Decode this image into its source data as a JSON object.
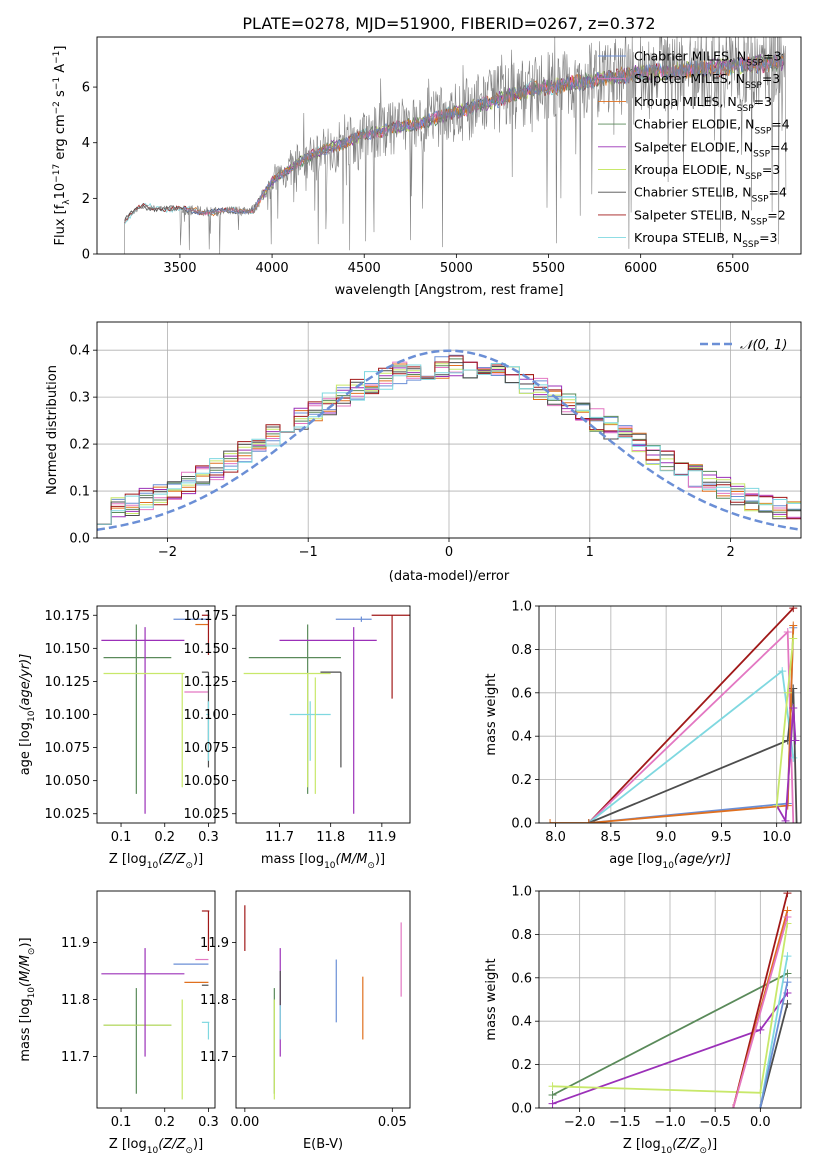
{
  "figure": {
    "title": "PLATE=0278, MJD=51900, FIBERID=0267, z=0.372"
  },
  "colors": {
    "chabrier_miles": "#6b8fd6",
    "salpeter_miles": "#e377c2",
    "kroupa_miles": "#e0701f",
    "chabrier_elodie": "#5a8a5a",
    "salpeter_elodie": "#9b30b8",
    "kroupa_elodie": "#c8e86a",
    "chabrier_stelib": "#4d4d4d",
    "salpeter_stelib": "#a01818",
    "kroupa_stelib": "#7fd8e0",
    "data": "#808080",
    "normal": "#6b8fd6",
    "grid": "#b0b0b0"
  },
  "chart_data": [
    {
      "id": "spectrum",
      "type": "line",
      "xlabel": "wavelength [Angstrom, rest frame]",
      "ylabel_main": "Flux [f",
      "ylabel_sub": "λ",
      "ylabel_rest": "10",
      "ylabel_exp": "−17",
      "ylabel_units": " erg cm",
      "ylabel_exp2": "−2",
      "ylabel_s": " s",
      "ylabel_exp3": "−1",
      "ylabel_A": " A",
      "ylabel_exp4": "−1",
      "ylabel_end": "]",
      "xlim": [
        3050,
        6870
      ],
      "ylim": [
        0,
        7.8
      ],
      "xticks": [
        3500,
        4000,
        4500,
        5000,
        5500,
        6000,
        6500
      ],
      "yticks": [
        0,
        2,
        4,
        6
      ],
      "grid": false,
      "legend_position": "top-right",
      "legend": [
        {
          "name": "Chabrier MILES, N",
          "sub": "SSP",
          "tail": "=3",
          "color": "chabrier_miles"
        },
        {
          "name": "Salpeter MILES, N",
          "sub": "SSP",
          "tail": "=3",
          "color": "salpeter_miles"
        },
        {
          "name": "Kroupa MILES, N",
          "sub": "SSP",
          "tail": "=3",
          "color": "kroupa_miles"
        },
        {
          "name": "Chabrier ELODIE, N",
          "sub": "SSP",
          "tail": "=4",
          "color": "chabrier_elodie"
        },
        {
          "name": "Salpeter ELODIE, N",
          "sub": "SSP",
          "tail": "=4",
          "color": "salpeter_elodie"
        },
        {
          "name": "Kroupa ELODIE, N",
          "sub": "SSP",
          "tail": "=3",
          "color": "kroupa_elodie"
        },
        {
          "name": "Chabrier STELIB, N",
          "sub": "SSP",
          "tail": "=4",
          "color": "chabrier_stelib"
        },
        {
          "name": "Salpeter STELIB, N",
          "sub": "SSP",
          "tail": "=2",
          "color": "salpeter_stelib"
        },
        {
          "name": "Kroupa STELIB, N",
          "sub": "SSP",
          "tail": "=3",
          "color": "kroupa_stelib"
        }
      ],
      "continuum_x": [
        3200,
        3250,
        3300,
        3400,
        3500,
        3600,
        3700,
        3800,
        3900,
        3950,
        4000,
        4100,
        4200,
        4300,
        4400,
        4500,
        4600,
        4700,
        4800,
        4900,
        5000,
        5100,
        5200,
        5300,
        5400,
        5500,
        5600,
        5700,
        5800,
        5900,
        6000,
        6200,
        6400,
        6600,
        6750
      ],
      "continuum_y": [
        1.2,
        1.5,
        1.7,
        1.65,
        1.6,
        1.55,
        1.5,
        1.55,
        1.6,
        2.1,
        2.6,
        3.1,
        3.5,
        3.8,
        4.0,
        4.3,
        4.4,
        4.6,
        4.7,
        4.9,
        5.1,
        5.3,
        5.5,
        5.7,
        5.9,
        6.0,
        6.1,
        6.2,
        6.3,
        6.4,
        6.5,
        6.6,
        6.7,
        6.8,
        6.9
      ]
    },
    {
      "id": "residuals",
      "type": "histogram",
      "xlabel": "(data-model)/error",
      "ylabel": "Normed distribution",
      "xlim": [
        -2.5,
        2.5
      ],
      "ylim": [
        0,
        0.46
      ],
      "xticks": [
        -2,
        -1,
        0,
        1,
        2
      ],
      "yticks": [
        0.0,
        0.1,
        0.2,
        0.3,
        0.4
      ],
      "grid": true,
      "legend_position": "top-right",
      "legend_label": "𝒩(0, 1)",
      "bin_width": 0.1,
      "sigma": 1.2
    },
    {
      "id": "z_age",
      "type": "errorbar",
      "xlabel_pre": "Z [log",
      "xlabel_sub": "10",
      "xlabel_post": "(Z/Z",
      "xlabel_sun": "⊙",
      "xlabel_end": ")]",
      "ylabel_pre": "age  [log",
      "ylabel_sub": "10",
      "ylabel_post": "(age/yr)]",
      "xlim": [
        0.045,
        0.315
      ],
      "ylim": [
        10.018,
        10.182
      ],
      "xticks": [
        0.1,
        0.2,
        0.3
      ],
      "yticks": [
        10.025,
        10.05,
        10.075,
        10.1,
        10.125,
        10.15,
        10.175
      ],
      "points": [
        {
          "c": "chabrier_elodie",
          "x": 0.135,
          "xe": [
            0.06,
            0.215
          ],
          "y": 10.143,
          "ye": [
            10.04,
            10.168
          ]
        },
        {
          "c": "salpeter_elodie",
          "x": 0.155,
          "xe": [
            0.055,
            0.245
          ],
          "y": 10.156,
          "ye": [
            10.025,
            10.166
          ]
        },
        {
          "c": "kroupa_elodie",
          "x": 0.24,
          "xe": [
            0.06,
            0.245
          ],
          "y": 10.131,
          "ye": [
            10.045,
            10.131
          ]
        },
        {
          "c": "chabrier_miles",
          "x": 0.3,
          "xe": [
            0.22,
            0.3
          ],
          "y": 10.172,
          "ye": [
            10.17,
            10.174
          ]
        },
        {
          "c": "salpeter_miles",
          "x": 0.3,
          "xe": [
            0.245,
            0.3
          ],
          "y": 10.117,
          "ye": [
            10.117,
            10.117
          ]
        },
        {
          "c": "kroupa_miles",
          "x": 0.3,
          "xe": [
            0.27,
            0.3
          ],
          "y": 10.168,
          "ye": [
            10.168,
            10.168
          ]
        },
        {
          "c": "chabrier_stelib",
          "x": 0.3,
          "xe": [
            0.285,
            0.3
          ],
          "y": 10.132,
          "ye": [
            10.06,
            10.132
          ]
        },
        {
          "c": "salpeter_stelib",
          "x": 0.3,
          "xe": [
            0.285,
            0.302
          ],
          "y": 10.175,
          "ye": [
            10.145,
            10.175
          ]
        },
        {
          "c": "kroupa_stelib",
          "x": 0.3,
          "xe": [
            0.295,
            0.302
          ],
          "y": 10.1,
          "ye": [
            10.065,
            10.11
          ]
        }
      ]
    },
    {
      "id": "mass_age",
      "type": "errorbar",
      "xlabel_pre": "mass [log",
      "xlabel_sub": "10",
      "xlabel_post": "(M/M",
      "xlabel_sun": "⊙",
      "xlabel_end": ")]",
      "xlim": [
        11.615,
        11.955
      ],
      "ylim": [
        10.018,
        10.182
      ],
      "xticks": [
        11.7,
        11.8,
        11.9
      ],
      "yticks": [
        10.025,
        10.05,
        10.075,
        10.1,
        10.125,
        10.15,
        10.175
      ],
      "points": [
        {
          "c": "chabrier_elodie",
          "x": 11.755,
          "xe": [
            11.64,
            11.82
          ],
          "y": 10.143,
          "ye": [
            10.04,
            10.168
          ]
        },
        {
          "c": "salpeter_elodie",
          "x": 11.845,
          "xe": [
            11.7,
            11.89
          ],
          "y": 10.156,
          "ye": [
            10.025,
            10.166
          ]
        },
        {
          "c": "kroupa_elodie",
          "x": 11.755,
          "xe": [
            11.63,
            11.8
          ],
          "y": 10.131,
          "ye": [
            10.045,
            10.131
          ]
        },
        {
          "c": "chabrier_miles",
          "x": 11.86,
          "xe": [
            11.81,
            11.88
          ],
          "y": 10.172,
          "ye": [
            10.17,
            10.174
          ]
        },
        {
          "c": "salpeter_miles",
          "x": 11.87,
          "xe": [
            11.87,
            11.87
          ],
          "y": 10.117,
          "ye": [
            10.117,
            10.117
          ]
        },
        {
          "c": "kroupa_miles",
          "x": 11.83,
          "xe": [
            11.83,
            11.83
          ],
          "y": 10.168,
          "ye": [
            10.168,
            10.168
          ]
        },
        {
          "c": "chabrier_stelib",
          "x": 11.82,
          "xe": [
            11.78,
            11.82
          ],
          "y": 10.132,
          "ye": [
            10.06,
            10.132
          ]
        },
        {
          "c": "salpeter_stelib",
          "x": 11.92,
          "xe": [
            11.88,
            11.955
          ],
          "y": 10.175,
          "ye": [
            10.112,
            10.175
          ]
        },
        {
          "c": "kroupa_stelib",
          "x": 11.76,
          "xe": [
            11.72,
            11.8
          ],
          "y": 10.1,
          "ye": [
            10.065,
            10.11
          ]
        },
        {
          "c": "kroupa_elodie",
          "x": 11.77,
          "xe": [
            11.77,
            11.77
          ],
          "y": 10.1,
          "ye": [
            10.04,
            10.128
          ]
        }
      ]
    },
    {
      "id": "age_weight",
      "type": "line",
      "xlabel_pre": "age  [log",
      "xlabel_sub": "10",
      "xlabel_post": "(age/yr)]",
      "ylabel": "mass weight",
      "xlim": [
        7.85,
        10.22
      ],
      "ylim": [
        0,
        1.0
      ],
      "xticks": [
        8.0,
        8.5,
        9.0,
        9.5,
        10.0
      ],
      "yticks": [
        0.0,
        0.2,
        0.4,
        0.6,
        0.8,
        1.0
      ],
      "grid": true,
      "series": [
        {
          "c": "salpeter_stelib",
          "x": [
            8.3,
            10.15
          ],
          "y": [
            0.0,
            0.99
          ]
        },
        {
          "c": "salpeter_miles",
          "x": [
            8.3,
            10.1,
            10.15
          ],
          "y": [
            0.0,
            0.88,
            0.0
          ]
        },
        {
          "c": "kroupa_stelib",
          "x": [
            8.3,
            10.05,
            10.15
          ],
          "y": [
            0.0,
            0.7,
            0.3
          ]
        },
        {
          "c": "chabrier_stelib",
          "x": [
            8.3,
            10.1,
            10.15,
            10.18
          ],
          "y": [
            0.0,
            0.38,
            0.62,
            0.0
          ]
        },
        {
          "c": "chabrier_miles",
          "x": [
            8.3,
            10.1,
            10.15
          ],
          "y": [
            0.0,
            0.09,
            0.9
          ]
        },
        {
          "c": "kroupa_miles",
          "x": [
            7.95,
            8.3,
            10.1,
            10.15
          ],
          "y": [
            0.0,
            0.0,
            0.08,
            0.91
          ]
        },
        {
          "c": "salpeter_elodie",
          "x": [
            10.0,
            10.08,
            10.15,
            10.17
          ],
          "y": [
            0.08,
            0.01,
            0.53,
            0.38
          ]
        },
        {
          "c": "kroupa_elodie",
          "x": [
            10.0,
            10.1,
            10.15
          ],
          "y": [
            0.08,
            0.6,
            0.85
          ]
        }
      ]
    },
    {
      "id": "z_mass",
      "type": "errorbar",
      "xlabel_pre": "Z [log",
      "xlabel_sub": "10",
      "xlabel_post": "(Z/Z",
      "xlabel_sun": "⊙",
      "xlabel_end": ")]",
      "ylabel_pre": "mass [log",
      "ylabel_sub": "10",
      "ylabel_post": "(M/M",
      "ylabel_sun": "⊙",
      "ylabel_end": ")]",
      "xlim": [
        0.045,
        0.315
      ],
      "ylim": [
        11.61,
        11.99
      ],
      "xticks": [
        0.1,
        0.2,
        0.3
      ],
      "yticks": [
        11.7,
        11.8,
        11.9
      ],
      "points": [
        {
          "c": "chabrier_elodie",
          "x": 0.135,
          "xe": [
            0.06,
            0.215
          ],
          "y": 11.755,
          "ye": [
            11.635,
            11.82
          ]
        },
        {
          "c": "kroupa_elodie",
          "x": 0.135,
          "xe": [
            0.06,
            0.215
          ],
          "y": 11.755,
          "ye": [
            11.755,
            11.755
          ]
        },
        {
          "c": "salpeter_elodie",
          "x": 0.155,
          "xe": [
            0.055,
            0.245
          ],
          "y": 11.845,
          "ye": [
            11.7,
            11.89
          ]
        },
        {
          "c": "kroupa_elodie",
          "x": 0.24,
          "xe": [
            0.24,
            0.24
          ],
          "y": 11.755,
          "ye": [
            11.625,
            11.8
          ]
        },
        {
          "c": "chabrier_miles",
          "x": 0.3,
          "xe": [
            0.22,
            0.3
          ],
          "y": 11.862,
          "ye": [
            11.862,
            11.862
          ]
        },
        {
          "c": "salpeter_miles",
          "x": 0.3,
          "xe": [
            0.27,
            0.3
          ],
          "y": 11.87,
          "ye": [
            11.87,
            11.87
          ]
        },
        {
          "c": "kroupa_miles",
          "x": 0.3,
          "xe": [
            0.245,
            0.3
          ],
          "y": 11.83,
          "ye": [
            11.83,
            11.83
          ]
        },
        {
          "c": "chabrier_stelib",
          "x": 0.3,
          "xe": [
            0.285,
            0.3
          ],
          "y": 11.825,
          "ye": [
            11.825,
            11.825
          ]
        },
        {
          "c": "salpeter_stelib",
          "x": 0.3,
          "xe": [
            0.285,
            0.302
          ],
          "y": 11.955,
          "ye": [
            11.885,
            11.955
          ]
        },
        {
          "c": "kroupa_stelib",
          "x": 0.3,
          "xe": [
            0.285,
            0.302
          ],
          "y": 11.76,
          "ye": [
            11.73,
            11.76
          ]
        }
      ]
    },
    {
      "id": "ebv_mass",
      "type": "errorbar",
      "xlabel": "E(B-V)",
      "xlim": [
        -0.003,
        0.056
      ],
      "ylim": [
        11.61,
        11.99
      ],
      "xticks": [
        0.0,
        0.05
      ],
      "yticks": [
        11.7,
        11.8,
        11.9
      ],
      "points": [
        {
          "c": "salpeter_stelib",
          "x": 0.0,
          "y": 11.92,
          "ye": [
            11.885,
            11.965
          ]
        },
        {
          "c": "chabrier_elodie",
          "x": 0.01,
          "y": 11.755,
          "ye": [
            11.635,
            11.82
          ]
        },
        {
          "c": "kroupa_elodie",
          "x": 0.01,
          "y": 11.755,
          "ye": [
            11.625,
            11.8
          ]
        },
        {
          "c": "salpeter_elodie",
          "x": 0.012,
          "y": 11.845,
          "ye": [
            11.7,
            11.89
          ]
        },
        {
          "c": "chabrier_stelib",
          "x": 0.012,
          "y": 11.825,
          "ye": [
            11.79,
            11.85
          ]
        },
        {
          "c": "kroupa_stelib",
          "x": 0.012,
          "y": 11.76,
          "ye": [
            11.73,
            11.79
          ]
        },
        {
          "c": "chabrier_miles",
          "x": 0.031,
          "y": 11.815,
          "ye": [
            11.76,
            11.87
          ]
        },
        {
          "c": "kroupa_miles",
          "x": 0.04,
          "y": 11.785,
          "ye": [
            11.73,
            11.84
          ]
        },
        {
          "c": "salpeter_miles",
          "x": 0.053,
          "y": 11.87,
          "ye": [
            11.805,
            11.935
          ]
        }
      ]
    },
    {
      "id": "z_weight",
      "type": "line",
      "xlabel_pre": "Z [log",
      "xlabel_sub": "10",
      "xlabel_post": "(Z/Z",
      "xlabel_sun": "⊙",
      "xlabel_end": ")]",
      "ylabel": "mass weight",
      "xlim": [
        -2.45,
        0.45
      ],
      "ylim": [
        0,
        1.0
      ],
      "xticks": [
        -2.0,
        -1.5,
        -1.0,
        -0.5,
        0.0
      ],
      "yticks": [
        0.0,
        0.2,
        0.4,
        0.6,
        0.8,
        1.0
      ],
      "grid": true,
      "series": [
        {
          "c": "chabrier_elodie",
          "x": [
            -2.3,
            0.3
          ],
          "y": [
            0.06,
            0.62
          ]
        },
        {
          "c": "salpeter_elodie",
          "x": [
            -2.3,
            0.0,
            0.3
          ],
          "y": [
            0.02,
            0.36,
            0.53
          ]
        },
        {
          "c": "kroupa_elodie",
          "x": [
            -2.3,
            0.0,
            0.3
          ],
          "y": [
            0.1,
            0.07,
            0.85
          ]
        },
        {
          "c": "salpeter_stelib",
          "x": [
            -0.3,
            0.3
          ],
          "y": [
            0.0,
            0.99
          ]
        },
        {
          "c": "kroupa_miles",
          "x": [
            -0.3,
            0.3
          ],
          "y": [
            0.0,
            0.91
          ]
        },
        {
          "c": "salpeter_miles",
          "x": [
            -0.3,
            0.3
          ],
          "y": [
            0.0,
            0.88
          ]
        },
        {
          "c": "kroupa_stelib",
          "x": [
            0.0,
            0.3
          ],
          "y": [
            0.0,
            0.7
          ]
        },
        {
          "c": "chabrier_stelib",
          "x": [
            0.0,
            0.3
          ],
          "y": [
            0.0,
            0.48
          ]
        },
        {
          "c": "chabrier_miles",
          "x": [
            0.0,
            0.3
          ],
          "y": [
            0.0,
            0.58
          ]
        }
      ]
    }
  ]
}
